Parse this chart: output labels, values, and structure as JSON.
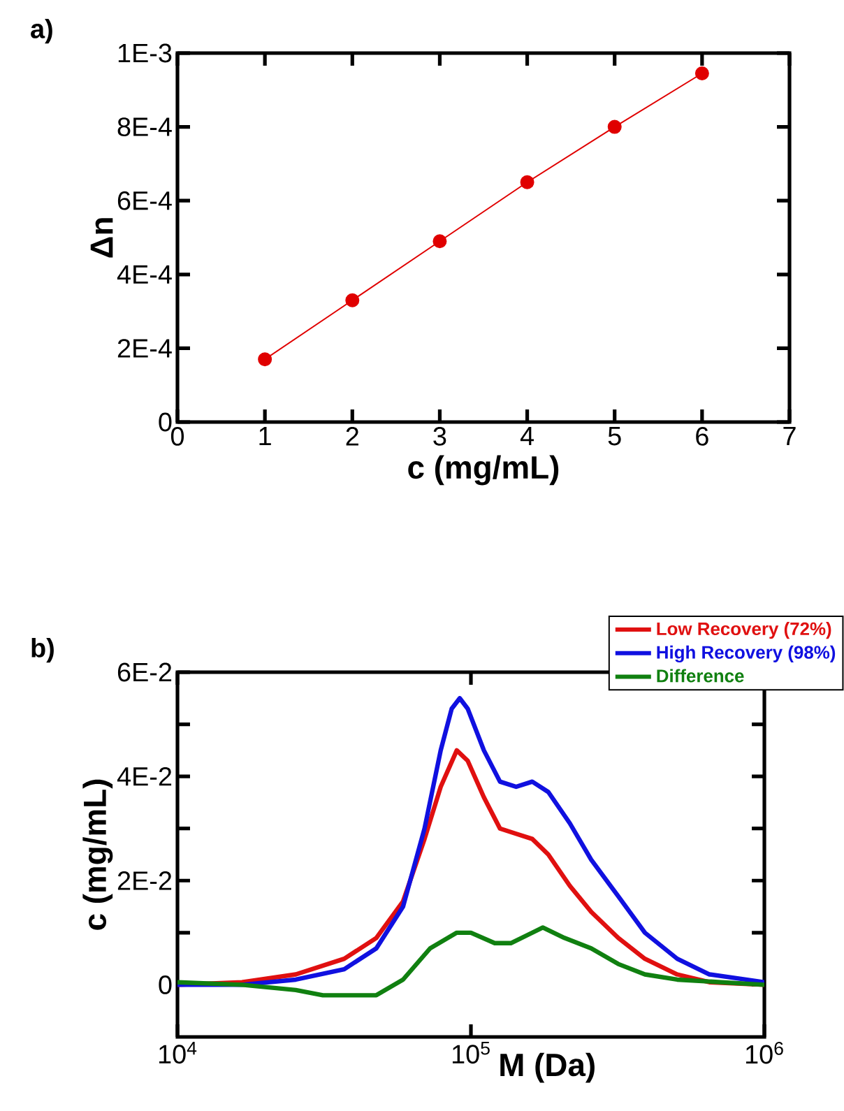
{
  "chart_data": [
    {
      "type": "line",
      "annotations": [
        "a)"
      ],
      "xlabel": "c (mg/mL)",
      "ylabel": "Δn",
      "marker": "circle",
      "line_style": "solid",
      "x": [
        1,
        2,
        3,
        4,
        5,
        6
      ],
      "series": [
        {
          "color": "#e00000",
          "values": [
            0.00017,
            0.00033,
            0.00049,
            0.00065,
            0.0008,
            0.000945
          ]
        }
      ],
      "xlim": [
        0,
        7
      ],
      "ylim": [
        0,
        0.001
      ],
      "xticks": [
        0,
        1,
        2,
        3,
        4,
        5,
        6,
        7
      ],
      "yticks": [
        0,
        {
          "value": 0.0002,
          "label": "2E-4"
        },
        {
          "value": 0.0004,
          "label": "4E-4"
        },
        {
          "value": 0.0006,
          "label": "6E-4"
        },
        {
          "value": 0.0008,
          "label": "8E-4"
        },
        {
          "value": 0.001,
          "label": "1E-3"
        }
      ]
    },
    {
      "type": "line",
      "annotations": [
        "b)"
      ],
      "xlabel": "M (Da)",
      "ylabel": "c (mg/mL)",
      "log": "x",
      "legend": "top right",
      "line_style": "solid",
      "series": [
        {
          "name": "Low Recovery (72%)",
          "color": "#e01010",
          "x": [
            10000,
            16600,
            25300,
            37000,
            47600,
            58700,
            69500,
            78900,
            89500,
            97500,
            110700,
            125600,
            142600,
            161800,
            183600,
            217300,
            257000,
            317700,
            391700,
            504700,
            650100,
            1000000
          ],
          "values": [
            0,
            0.0005,
            0.002,
            0.005,
            0.009,
            0.016,
            0.028,
            0.038,
            0.045,
            0.043,
            0.036,
            0.03,
            0.029,
            0.028,
            0.025,
            0.019,
            0.014,
            0.009,
            0.005,
            0.002,
            0.0005,
            0
          ]
        },
        {
          "name": "High Recovery (98%)",
          "color": "#1010e0",
          "x": [
            10000,
            16600,
            25300,
            37000,
            47600,
            58700,
            69500,
            78900,
            86000,
            91600,
            97500,
            110700,
            125600,
            142600,
            161800,
            183600,
            217300,
            257000,
            317700,
            391700,
            504700,
            650100,
            1000000
          ],
          "values": [
            0,
            0,
            0.001,
            0.003,
            0.007,
            0.015,
            0.03,
            0.045,
            0.053,
            0.055,
            0.053,
            0.045,
            0.039,
            0.038,
            0.039,
            0.037,
            0.031,
            0.024,
            0.017,
            0.01,
            0.005,
            0.002,
            0.0005
          ]
        },
        {
          "name": "Difference",
          "color": "#108010",
          "x": [
            10000,
            16600,
            25300,
            31300,
            47600,
            58700,
            72600,
            89500,
            100000,
            120500,
            136800,
            175800,
            208300,
            257000,
            317700,
            391700,
            504700,
            1000000
          ],
          "values": [
            0.0005,
            0,
            -0.001,
            -0.002,
            -0.002,
            0.001,
            0.007,
            0.01,
            0.01,
            0.008,
            0.008,
            0.011,
            0.009,
            0.007,
            0.004,
            0.002,
            0.001,
            0
          ]
        }
      ],
      "xlim": [
        10000,
        1000000
      ],
      "ylim": [
        -0.01,
        0.06
      ],
      "xticks": [
        {
          "value": 10000,
          "label": "10$^{4}$"
        },
        {
          "value": 100000,
          "label": "10$^{5}$"
        },
        {
          "value": 1000000,
          "label": "10$^{6}$"
        }
      ],
      "yticks": [
        0,
        {
          "value": 0.01,
          "label": null
        },
        {
          "value": 0.02,
          "label": "2E-2"
        },
        {
          "value": 0.03,
          "label": null
        },
        {
          "value": 0.04,
          "label": "4E-2"
        },
        {
          "value": 0.05,
          "label": null
        },
        {
          "value": 0.06,
          "label": "6E-2"
        }
      ]
    }
  ]
}
